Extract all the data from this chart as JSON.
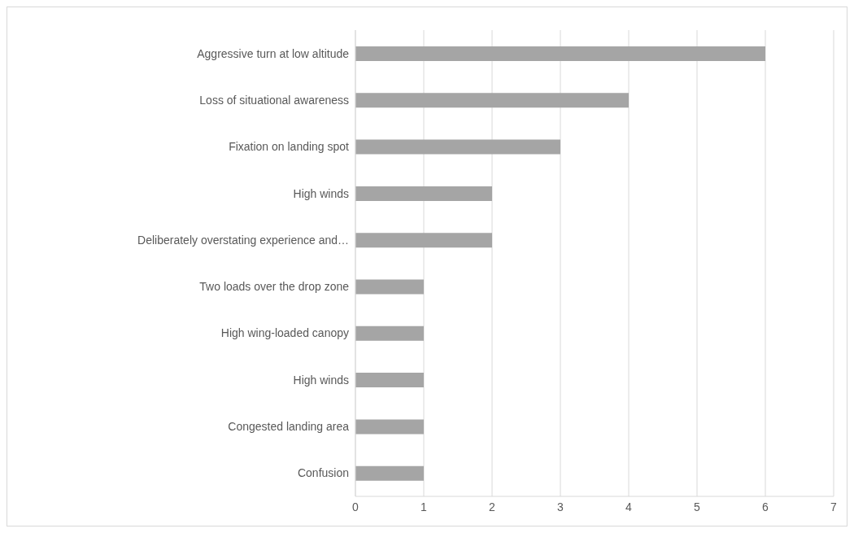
{
  "chart_data": {
    "type": "bar",
    "orientation": "horizontal",
    "categories": [
      "Aggressive turn at low altitude",
      "Loss of situational awareness",
      "Fixation on landing spot",
      "High winds",
      "Deliberately overstating experience and…",
      "Two loads over the drop zone",
      "High wing-loaded canopy ",
      "High winds",
      "Congested landing area",
      "Confusion"
    ],
    "values": [
      6,
      4,
      3,
      2,
      2,
      1,
      1,
      1,
      1,
      1
    ],
    "color": "#a5a5a5",
    "xlim": [
      0,
      7
    ],
    "xticks": [
      0,
      1,
      2,
      3,
      4,
      5,
      6,
      7
    ],
    "grid": "x"
  }
}
